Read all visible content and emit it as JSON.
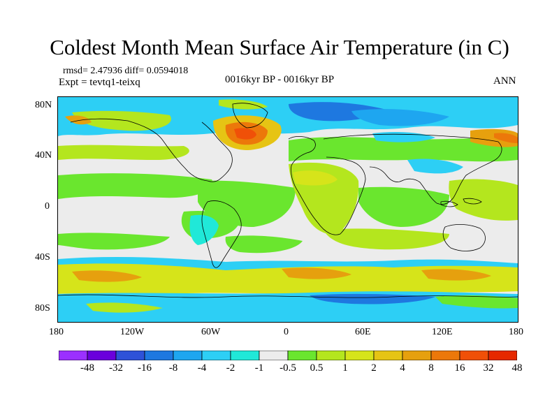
{
  "title": "Coldest Month Mean Surface Air Temperature (in C)",
  "stats": "rmsd= 2.47936 diff= 0.0594018",
  "experiment": "Expt = tevtq1-teixq",
  "period": "0016kyr BP - 0016kyr BP",
  "season": "ANN",
  "lat_ticks": [
    "80N",
    "40N",
    "0",
    "40S",
    "80S"
  ],
  "lon_ticks": [
    "180",
    "120W",
    "60W",
    "0",
    "60E",
    "120E",
    "180"
  ],
  "colorbar": {
    "colors": [
      "#9b30ff",
      "#6a00dc",
      "#2e52d8",
      "#1e78e0",
      "#1ea6f0",
      "#2dcff5",
      "#20e8d8",
      "#ececec",
      "#6ae62e",
      "#b4e61e",
      "#d6e41a",
      "#e6c414",
      "#e6a00e",
      "#ec780a",
      "#f05008",
      "#e62800"
    ],
    "labels": [
      "-48",
      "-32",
      "-16",
      "-8",
      "-4",
      "-2",
      "-1",
      "-0.5",
      "0.5",
      "1",
      "2",
      "4",
      "8",
      "16",
      "32",
      "48"
    ]
  },
  "palette": {
    "neutral": "#ececec",
    "coast": "#000000"
  }
}
